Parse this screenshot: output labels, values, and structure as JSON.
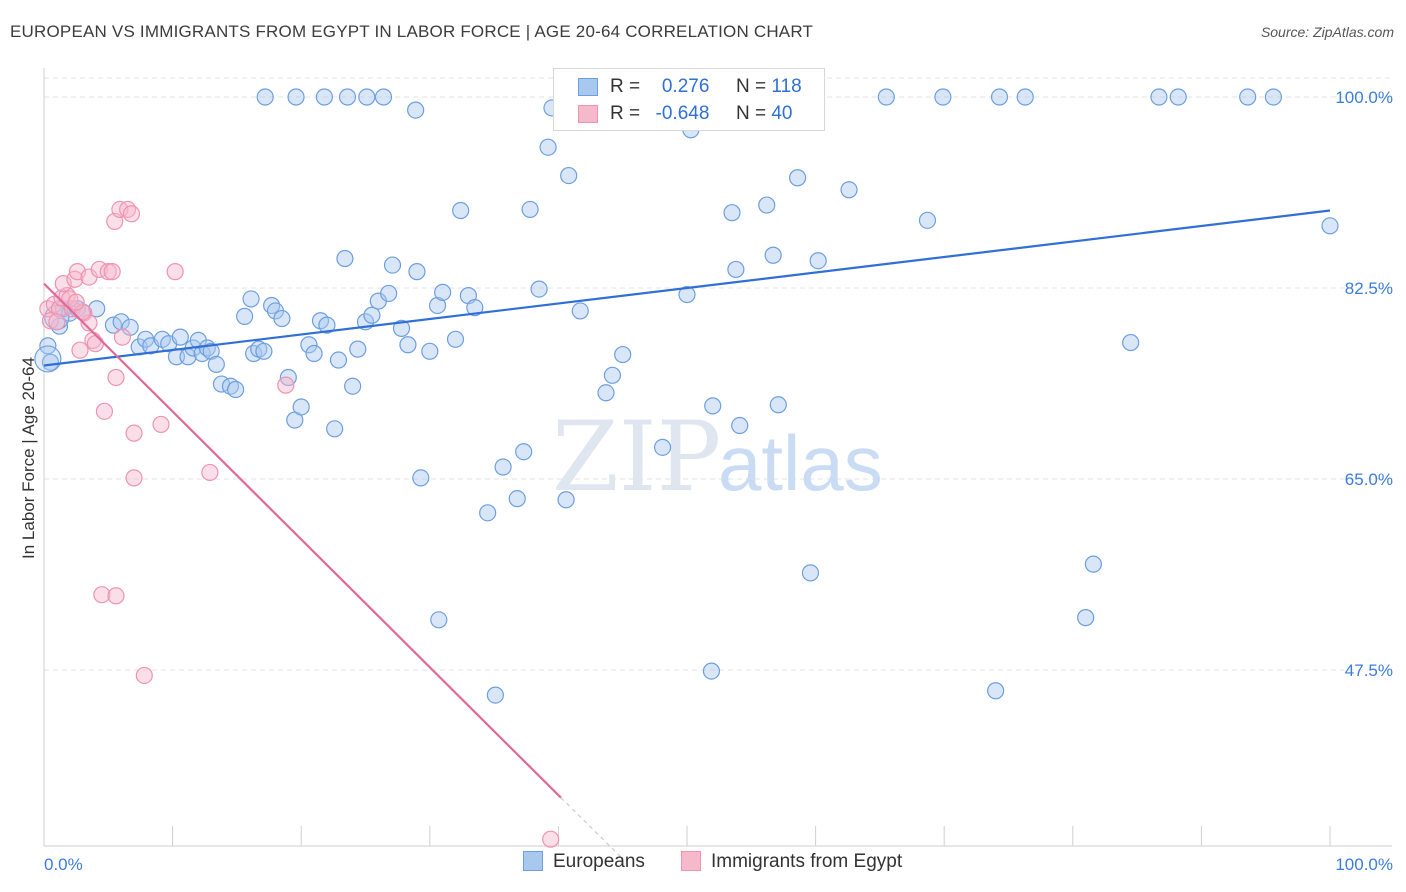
{
  "title": "EUROPEAN VS IMMIGRANTS FROM EGYPT IN LABOR FORCE | AGE 20-64 CORRELATION CHART",
  "source": "Source: ZipAtlas.com",
  "colors": {
    "blue": "#2f6fd6",
    "blue_fill": "#a9c8ee",
    "blue_stroke": "#6d9fe0",
    "pink": "#e06a94",
    "pink_fill": "#f6b9cc",
    "pink_stroke": "#ee93b2",
    "tick_text": "#3b7dd8",
    "grid": "#e3e3e3"
  },
  "legend": {
    "rows": [
      {
        "r_label": "R =",
        "r_value": "0.276",
        "n_label": "N =",
        "n_value": "118"
      },
      {
        "r_label": "R =",
        "r_value": "-0.648",
        "n_label": "N =",
        "n_value": "40"
      }
    ]
  },
  "bottom_legend": {
    "europeans": "Europeans",
    "egypt": "Immigrants from Egypt"
  },
  "watermark": {
    "zip": "ZIP",
    "atlas": "atlas"
  },
  "chart_data": {
    "type": "scatter",
    "title": "EUROPEAN VS IMMIGRANTS FROM EGYPT IN LABOR FORCE | AGE 20-64 CORRELATION CHART",
    "xlabel": "",
    "ylabel": "In Labor Force | Age 20-64",
    "xlim": [
      0,
      100
    ],
    "ylim": [
      30,
      101.5
    ],
    "x_tick_labels": [
      "0.0%",
      "100.0%"
    ],
    "y_ticks": [
      47.5,
      65.0,
      82.5,
      100.0
    ],
    "y_tick_labels": [
      "47.5%",
      "65.0%",
      "82.5%",
      "100.0%"
    ],
    "grid": true,
    "legend_position": "top-center",
    "series": [
      {
        "name": "Europeans",
        "R": 0.276,
        "N": 118,
        "trend": {
          "x": [
            0,
            100
          ],
          "y": [
            75.4,
            89.6
          ]
        },
        "points": [
          [
            0.3,
            77.2
          ],
          [
            0.5,
            75.7
          ],
          [
            1.2,
            79.0
          ],
          [
            1.5,
            80.6
          ],
          [
            2.0,
            80.2
          ],
          [
            2.6,
            80.6
          ],
          [
            3.0,
            80.3
          ],
          [
            4.1,
            80.6
          ],
          [
            5.4,
            79.1
          ],
          [
            6.0,
            79.4
          ],
          [
            6.7,
            78.9
          ],
          [
            7.4,
            77.1
          ],
          [
            7.9,
            77.8
          ],
          [
            8.3,
            77.2
          ],
          [
            9.2,
            77.8
          ],
          [
            9.7,
            77.4
          ],
          [
            10.3,
            76.2
          ],
          [
            10.6,
            78.0
          ],
          [
            11.2,
            76.2
          ],
          [
            11.6,
            77.0
          ],
          [
            12.0,
            77.7
          ],
          [
            12.3,
            76.5
          ],
          [
            12.7,
            77.0
          ],
          [
            13.0,
            76.7
          ],
          [
            13.4,
            75.5
          ],
          [
            13.8,
            73.7
          ],
          [
            14.5,
            73.5
          ],
          [
            14.9,
            73.2
          ],
          [
            15.6,
            79.9
          ],
          [
            16.1,
            81.5
          ],
          [
            16.3,
            76.5
          ],
          [
            16.7,
            76.9
          ],
          [
            17.1,
            76.7
          ],
          [
            17.7,
            80.9
          ],
          [
            18.0,
            80.4
          ],
          [
            18.5,
            79.7
          ],
          [
            19.0,
            74.3
          ],
          [
            19.5,
            70.4
          ],
          [
            20.0,
            71.6
          ],
          [
            20.6,
            77.3
          ],
          [
            21.0,
            76.5
          ],
          [
            21.5,
            79.5
          ],
          [
            22.0,
            79.1
          ],
          [
            22.6,
            69.6
          ],
          [
            22.9,
            75.9
          ],
          [
            23.4,
            85.2
          ],
          [
            24.0,
            73.5
          ],
          [
            24.4,
            76.9
          ],
          [
            25.0,
            79.4
          ],
          [
            25.5,
            80.0
          ],
          [
            26.0,
            81.3
          ],
          [
            26.8,
            82.0
          ],
          [
            27.1,
            84.6
          ],
          [
            27.8,
            78.8
          ],
          [
            28.3,
            77.3
          ],
          [
            29.0,
            84.0
          ],
          [
            29.3,
            65.1
          ],
          [
            30.0,
            76.7
          ],
          [
            30.6,
            80.9
          ],
          [
            31.0,
            82.1
          ],
          [
            32.0,
            77.8
          ],
          [
            33.0,
            81.8
          ],
          [
            33.5,
            80.7
          ],
          [
            34.5,
            61.9
          ],
          [
            35.1,
            45.2
          ],
          [
            35.7,
            66.1
          ],
          [
            36.8,
            63.2
          ],
          [
            37.3,
            67.5
          ],
          [
            37.8,
            89.7
          ],
          [
            38.5,
            82.4
          ],
          [
            39.2,
            95.4
          ],
          [
            39.5,
            99.0
          ],
          [
            40.6,
            63.1
          ],
          [
            41.0,
            100.0
          ],
          [
            41.7,
            80.4
          ],
          [
            43.7,
            72.9
          ],
          [
            44.2,
            74.5
          ],
          [
            45.0,
            76.4
          ],
          [
            46.2,
            100.0
          ],
          [
            48.1,
            67.9
          ],
          [
            48.9,
            100.0
          ],
          [
            50.0,
            81.9
          ],
          [
            51.4,
            100.0
          ],
          [
            51.9,
            47.4
          ],
          [
            52.0,
            71.7
          ],
          [
            53.5,
            89.4
          ],
          [
            53.8,
            84.2
          ],
          [
            54.1,
            69.9
          ],
          [
            56.7,
            85.5
          ],
          [
            57.1,
            71.8
          ],
          [
            58.6,
            92.6
          ],
          [
            59.6,
            56.4
          ],
          [
            60.2,
            85.0
          ],
          [
            62.6,
            91.5
          ],
          [
            68.7,
            88.7
          ],
          [
            69.9,
            100.0
          ],
          [
            74.0,
            45.6
          ],
          [
            74.3,
            100.0
          ],
          [
            76.3,
            100.0
          ],
          [
            81.0,
            52.3
          ],
          [
            81.6,
            57.2
          ],
          [
            84.5,
            77.5
          ],
          [
            86.7,
            100.0
          ],
          [
            88.2,
            100.0
          ],
          [
            93.6,
            100.0
          ],
          [
            95.6,
            100.0
          ],
          [
            100.0,
            88.2
          ],
          [
            30.7,
            52.1
          ],
          [
            28.9,
            98.8
          ],
          [
            32.4,
            89.6
          ],
          [
            40.8,
            92.8
          ],
          [
            50.3,
            97.0
          ],
          [
            56.2,
            90.1
          ],
          [
            65.5,
            100.0
          ],
          [
            17.2,
            100.0
          ],
          [
            19.6,
            100.0
          ],
          [
            21.8,
            100.0
          ],
          [
            23.6,
            100.0
          ],
          [
            25.1,
            100.0
          ],
          [
            26.4,
            100.0
          ]
        ]
      },
      {
        "name": "Immigrants from Egypt",
        "R": -0.648,
        "N": 40,
        "trend": {
          "x": [
            0,
            40.2
          ],
          "y": [
            82.9,
            35.8
          ],
          "dash": {
            "x": [
              40.2,
              45.0
            ],
            "y": [
              35.8,
              30.2
            ]
          }
        },
        "points": [
          [
            0.3,
            80.6
          ],
          [
            0.5,
            79.5
          ],
          [
            0.8,
            81.0
          ],
          [
            1.2,
            80.6
          ],
          [
            1.4,
            81.6
          ],
          [
            1.8,
            81.8
          ],
          [
            1.5,
            82.9
          ],
          [
            2.2,
            80.6
          ],
          [
            2.4,
            83.3
          ],
          [
            2.6,
            84.0
          ],
          [
            2.8,
            76.8
          ],
          [
            3.1,
            80.2
          ],
          [
            3.5,
            79.3
          ],
          [
            3.5,
            83.5
          ],
          [
            3.8,
            77.7
          ],
          [
            4.0,
            77.4
          ],
          [
            4.3,
            84.2
          ],
          [
            4.7,
            71.2
          ],
          [
            5.0,
            84.0
          ],
          [
            5.3,
            84.0
          ],
          [
            5.5,
            88.6
          ],
          [
            5.6,
            74.3
          ],
          [
            5.9,
            89.7
          ],
          [
            6.1,
            78.0
          ],
          [
            6.5,
            89.7
          ],
          [
            6.8,
            89.3
          ],
          [
            7.0,
            69.2
          ],
          [
            7.0,
            65.1
          ],
          [
            9.1,
            70.0
          ],
          [
            10.2,
            84.0
          ],
          [
            12.9,
            65.6
          ],
          [
            18.8,
            73.6
          ],
          [
            7.8,
            47.0
          ],
          [
            4.5,
            54.4
          ],
          [
            5.6,
            54.3
          ],
          [
            39.4,
            32.0
          ],
          [
            1.0,
            79.4
          ],
          [
            2.0,
            81.5
          ],
          [
            3.0,
            80.3
          ],
          [
            2.5,
            81.2
          ]
        ]
      }
    ]
  }
}
